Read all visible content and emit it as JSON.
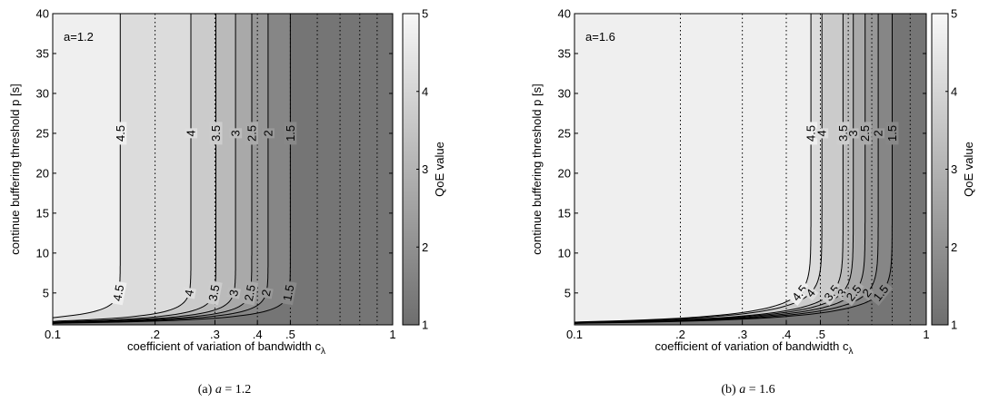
{
  "chart_data": [
    {
      "type": "contour",
      "panel_caption": "(a) a = 1.2",
      "caption_prefix": "(a) ",
      "caption_var": "a",
      "caption_value": " = 1.2",
      "annotation": "a=1.2",
      "a": 1.2,
      "xlabel": "coefficient of variation of bandwidth c",
      "xlabel_sub": "λ",
      "ylabel": "continue buffering threshold p [s]",
      "colorbar_label": "QoE value",
      "x_scale": "log",
      "xlim": [
        0.1,
        1
      ],
      "ylim": [
        1,
        40
      ],
      "clim": [
        1,
        5
      ],
      "x_tick_values": [
        0.1,
        0.2,
        0.3,
        0.4,
        0.5,
        1
      ],
      "x_tick_labels": [
        "0.1",
        ".2",
        ".3",
        ".4",
        ".5",
        "1"
      ],
      "y_ticks": [
        5,
        10,
        15,
        20,
        25,
        30,
        35,
        40
      ],
      "colorbar_ticks": [
        1,
        2,
        3,
        4,
        5
      ],
      "dotted_gridlines_x": [
        0.2,
        0.3,
        0.4,
        0.5,
        0.6,
        0.7,
        0.8,
        0.9
      ],
      "contour_levels": [
        {
          "label": "4.5",
          "level": 4.5,
          "c_inf": 0.158,
          "k": 2.4
        },
        {
          "label": "4",
          "level": 4.0,
          "c_inf": 0.255,
          "k": 2.4
        },
        {
          "label": "3.5",
          "level": 3.5,
          "c_inf": 0.302,
          "k": 2.4
        },
        {
          "label": "3",
          "level": 3.0,
          "c_inf": 0.345,
          "k": 2.4
        },
        {
          "label": "2.5",
          "level": 2.5,
          "c_inf": 0.385,
          "k": 2.4
        },
        {
          "label": "2",
          "level": 2.0,
          "c_inf": 0.43,
          "k": 2.4
        },
        {
          "label": "1.5",
          "level": 1.5,
          "c_inf": 0.5,
          "k": 2.4
        }
      ],
      "labels_on_curves_y": [
        25,
        5
      ]
    },
    {
      "type": "contour",
      "panel_caption": "(b) a = 1.6",
      "caption_prefix": "(b) ",
      "caption_var": "a",
      "caption_value": " = 1.6",
      "annotation": "a=1.6",
      "a": 1.6,
      "xlabel": "coefficient of variation of bandwidth c",
      "xlabel_sub": "λ",
      "ylabel": "continue buffering threshold p [s]",
      "colorbar_label": "QoE value",
      "x_scale": "log",
      "xlim": [
        0.1,
        1
      ],
      "ylim": [
        1,
        40
      ],
      "clim": [
        1,
        5
      ],
      "x_tick_values": [
        0.1,
        0.2,
        0.3,
        0.4,
        0.5,
        1
      ],
      "x_tick_labels": [
        "0.1",
        ".2",
        ".3",
        ".4",
        ".5",
        "1"
      ],
      "y_ticks": [
        5,
        10,
        15,
        20,
        25,
        30,
        35,
        40
      ],
      "colorbar_ticks": [
        1,
        2,
        3,
        4,
        5
      ],
      "dotted_gridlines_x": [
        0.2,
        0.3,
        0.4,
        0.5,
        0.6,
        0.7,
        0.8,
        0.9
      ],
      "contour_levels": [
        {
          "label": "4.5",
          "level": 4.5,
          "c_inf": 0.47,
          "k": 1.45
        },
        {
          "label": "4",
          "level": 4.0,
          "c_inf": 0.505,
          "k": 1.45
        },
        {
          "label": "3.5",
          "level": 3.5,
          "c_inf": 0.58,
          "k": 1.45
        },
        {
          "label": "3",
          "level": 3.0,
          "c_inf": 0.62,
          "k": 1.45
        },
        {
          "label": "2.5",
          "level": 2.5,
          "c_inf": 0.67,
          "k": 1.45
        },
        {
          "label": "2",
          "level": 2.0,
          "c_inf": 0.73,
          "k": 1.45
        },
        {
          "label": "1.5",
          "level": 1.5,
          "c_inf": 0.8,
          "k": 1.45
        }
      ],
      "labels_on_curves_y": [
        25,
        5
      ]
    }
  ]
}
